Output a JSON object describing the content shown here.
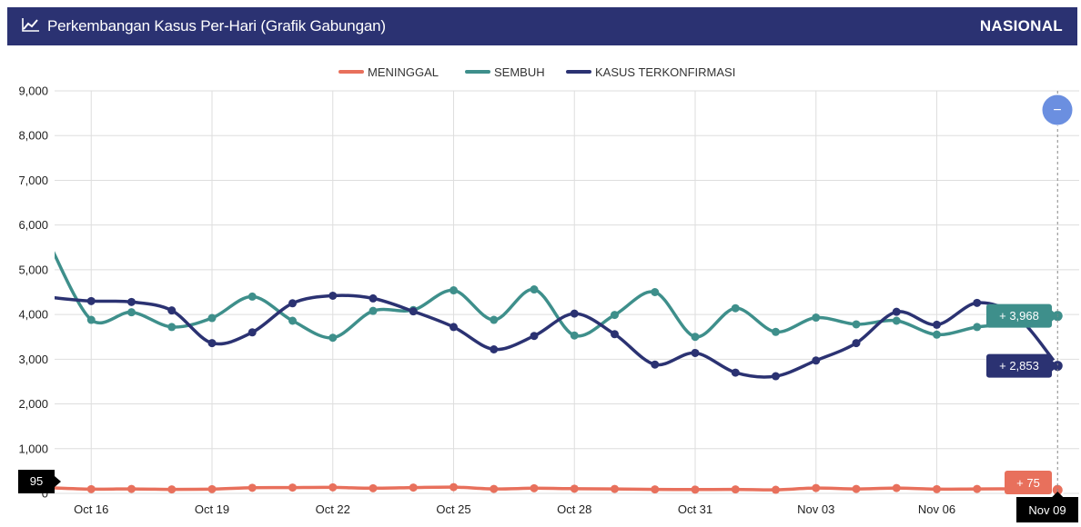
{
  "header": {
    "title": "Perkembangan Kasus Per-Hari (Grafik Gabungan)",
    "scope": "NASIONAL",
    "icon": "line-chart-icon"
  },
  "zoom_button": {
    "icon": "minus-icon",
    "symbol": "−"
  },
  "colors": {
    "header_bg": "#2b3272",
    "meninggal": "#e8705c",
    "sembuh": "#3e8f8b",
    "kasus": "#2b3272",
    "zoom": "#6b8fe0"
  },
  "chart_data": {
    "type": "line",
    "x": [
      "Oct 15",
      "Oct 16",
      "Oct 17",
      "Oct 18",
      "Oct 19",
      "Oct 20",
      "Oct 21",
      "Oct 22",
      "Oct 23",
      "Oct 24",
      "Oct 25",
      "Oct 26",
      "Oct 27",
      "Oct 28",
      "Oct 29",
      "Oct 30",
      "Oct 31",
      "Nov 01",
      "Nov 02",
      "Nov 03",
      "Nov 04",
      "Nov 05",
      "Nov 06",
      "Nov 07",
      "Nov 08",
      "Nov 09"
    ],
    "x_tick_labels": [
      "Oct 16",
      "Oct 19",
      "Oct 22",
      "Oct 25",
      "Oct 28",
      "Oct 31",
      "Nov 03",
      "Nov 06",
      "Nov 09"
    ],
    "ylim": [
      0,
      9000
    ],
    "y_ticks": [
      "0",
      "1,000",
      "2,000",
      "3,000",
      "4,000",
      "5,000",
      "6,000",
      "7,000",
      "8,000",
      "9,000"
    ],
    "grid": true,
    "legend_position": "top-center",
    "series": [
      {
        "name": "MENINGGAL",
        "key": "meninggal",
        "values": [
          125,
          95,
          100,
          90,
          95,
          125,
          130,
          135,
          115,
          130,
          140,
          100,
          115,
          105,
          100,
          90,
          85,
          90,
          80,
          120,
          100,
          120,
          95,
          100,
          100,
          75
        ]
      },
      {
        "name": "SEMBUH",
        "key": "sembuh",
        "values": [
          5500,
          3880,
          4050,
          3720,
          3920,
          4400,
          3860,
          3480,
          4080,
          4100,
          4540,
          3880,
          4560,
          3530,
          3990,
          4500,
          3500,
          4140,
          3610,
          3930,
          3780,
          3860,
          3550,
          3720,
          3800,
          3968
        ]
      },
      {
        "name": "KASUS TERKONFIRMASI",
        "key": "kasus",
        "values": [
          4380,
          4300,
          4280,
          4090,
          3360,
          3600,
          4250,
          4420,
          4360,
          4070,
          3720,
          3220,
          3520,
          4020,
          3560,
          2880,
          3140,
          2700,
          2620,
          2970,
          3360,
          4060,
          3770,
          4260,
          3950,
          2853
        ]
      }
    ],
    "tooltip": {
      "x_label": "Nov 09",
      "meninggal_label": "+ 75",
      "sembuh_label": "+ 3,968",
      "kasus_label": "+ 2,853",
      "y_marker": "95"
    }
  }
}
